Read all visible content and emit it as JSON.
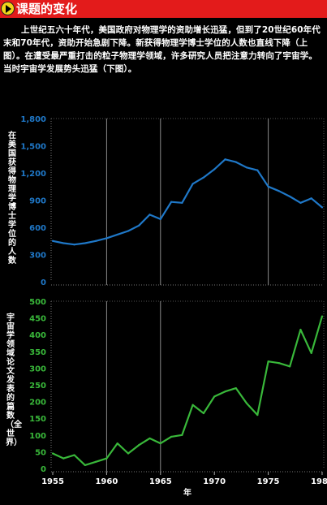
{
  "header": {
    "title": "课题的变化",
    "icon": "play-icon"
  },
  "intro": "上世纪五六十年代，美国政府对物理学的资助增长迅猛，但到了20世纪60年代末和70年代，资助开始急剧下降。新获得物理学博士学位的人数也直线下降（上图）。在遭受最严重打击的粒子物理学领域，许多研究人员把注意力转向了宇宙学。当时宇宙学发展势头迅猛（下图）。",
  "colors": {
    "top_series": "#1f78c8",
    "bottom_series": "#39b83a",
    "header_bg": "#e31b1b"
  },
  "chart_data": [
    {
      "type": "line",
      "ylabel": "在美国获得物理学博士学位的人数",
      "ylim": [
        0,
        1800
      ],
      "yticks": [
        "0",
        "300",
        "600",
        "900",
        "1,200",
        "1,500",
        "1,800"
      ],
      "x": [
        1955,
        1956,
        1957,
        1958,
        1959,
        1960,
        1961,
        1962,
        1963,
        1964,
        1965,
        1966,
        1967,
        1968,
        1969,
        1970,
        1971,
        1972,
        1973,
        1974,
        1975,
        1976,
        1977,
        1978,
        1979,
        1980
      ],
      "values": [
        450,
        425,
        410,
        425,
        450,
        480,
        520,
        560,
        620,
        740,
        690,
        880,
        870,
        1080,
        1150,
        1240,
        1350,
        1320,
        1260,
        1230,
        1050,
        1000,
        940,
        870,
        920,
        820
      ],
      "vlines": [
        1960,
        1965,
        1975
      ],
      "grid": false
    },
    {
      "type": "line",
      "ylabel": "宇宙学领域论文发表的篇数（全世界）",
      "xlabel": "年",
      "ylim": [
        0,
        500
      ],
      "yticks": [
        "0",
        "50",
        "100",
        "150",
        "200",
        "250",
        "300",
        "350",
        "400",
        "450",
        "500"
      ],
      "xticks": [
        "1955",
        "1960",
        "1965",
        "1970",
        "1975",
        "1980"
      ],
      "x": [
        1955,
        1956,
        1957,
        1958,
        1959,
        1960,
        1961,
        1962,
        1963,
        1964,
        1965,
        1966,
        1967,
        1968,
        1969,
        1970,
        1971,
        1972,
        1973,
        1974,
        1975,
        1976,
        1977,
        1978,
        1979,
        1980
      ],
      "values": [
        45,
        30,
        40,
        10,
        20,
        30,
        75,
        45,
        70,
        90,
        75,
        95,
        100,
        190,
        165,
        215,
        230,
        240,
        195,
        160,
        320,
        315,
        305,
        415,
        345,
        455
      ],
      "vlines": [
        1960,
        1965
      ],
      "grid": false
    }
  ]
}
